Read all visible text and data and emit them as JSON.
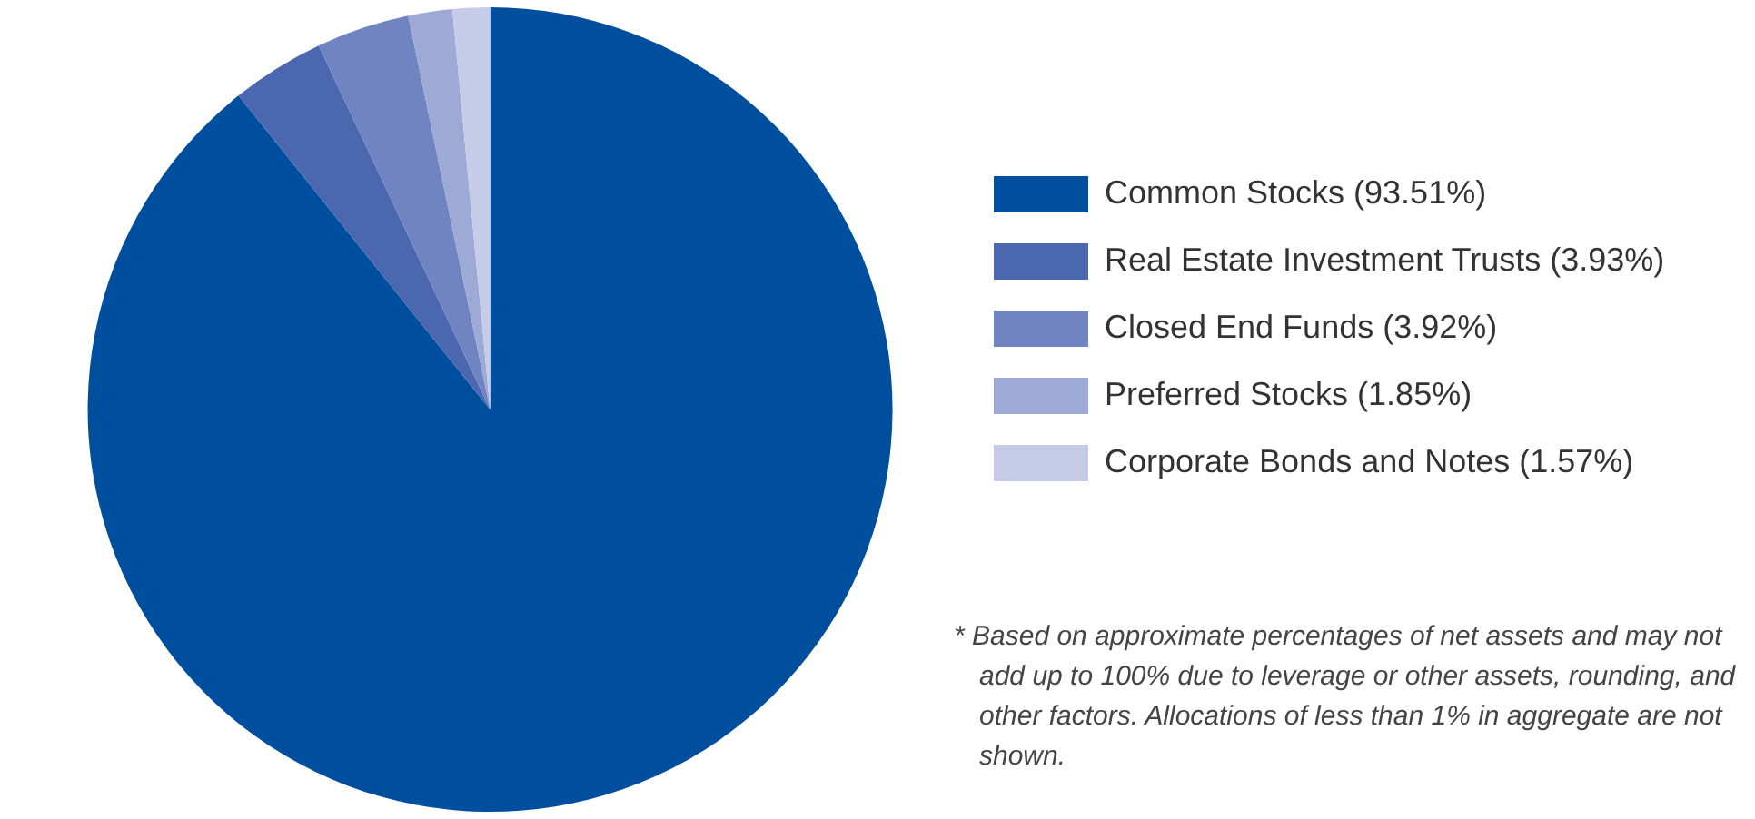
{
  "chart_data": {
    "type": "pie",
    "categories": [
      "Common Stocks (93.51%)",
      "Real Estate Investment Trusts (3.93%)",
      "Closed End Funds (3.92%)",
      "Preferred Stocks (1.85%)",
      "Corporate Bonds and Notes (1.57%)"
    ],
    "values": [
      93.51,
      3.93,
      3.92,
      1.85,
      1.57
    ],
    "colors": [
      "#004e9e",
      "#4a67b0",
      "#6f84c0",
      "#9eaad6",
      "#c6cce8"
    ],
    "legend": "right",
    "annotations": [
      "* Based on approximate percentages of net assets and may not add up to 100% due to leverage or other assets, rounding, and other factors. Allocations of less than 1% in aggregate are not shown."
    ]
  }
}
